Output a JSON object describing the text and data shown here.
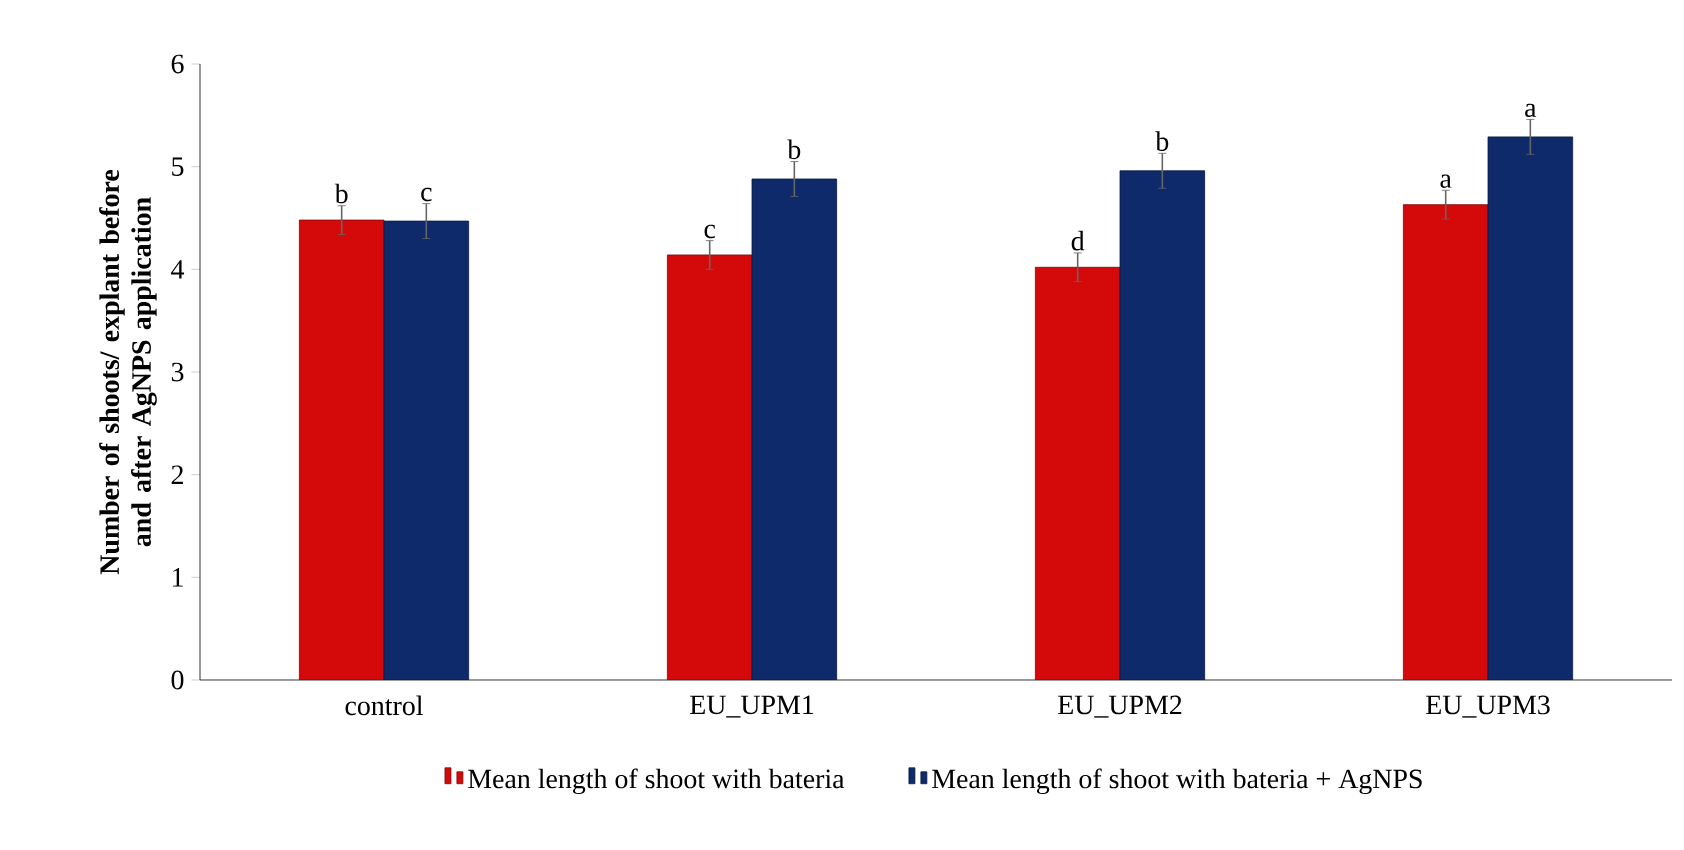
{
  "chart_data": {
    "type": "bar",
    "ylabel": "Number of shoots/ explant before and after AgNPS application",
    "categories": [
      "control",
      "EU_UPM1",
      "EU_UPM2",
      "EU_UPM3"
    ],
    "series": [
      {
        "name": "Mean length of shoot with bateria",
        "color": "#d40a0a",
        "values": [
          4.48,
          4.14,
          4.02,
          4.63
        ],
        "errors": [
          0.14,
          0.14,
          0.14,
          0.14
        ],
        "value_labels": [
          "b",
          "c",
          "d",
          "a"
        ]
      },
      {
        "name": "Mean  length of shoot with bateria + AgNPS",
        "color": "#0f2a6b",
        "values": [
          4.47,
          4.88,
          4.96,
          5.29
        ],
        "errors": [
          0.17,
          0.17,
          0.17,
          0.17
        ],
        "value_labels": [
          "c",
          "b",
          "b",
          "a"
        ]
      }
    ],
    "ylim": [
      0,
      6
    ],
    "yticks": [
      0,
      1,
      2,
      3,
      4,
      5,
      6
    ],
    "grid": false,
    "legend": "bottom"
  }
}
